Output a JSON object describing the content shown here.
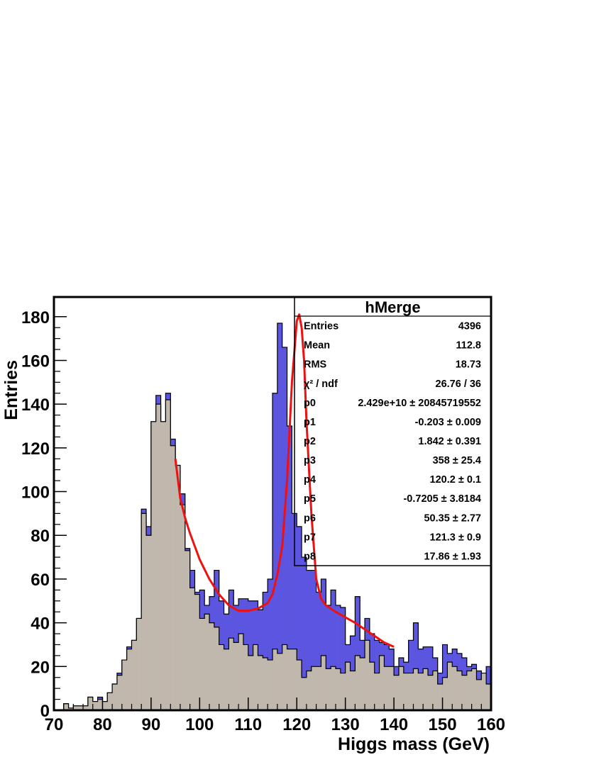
{
  "chart_data": {
    "type": "histogram",
    "xlabel": "Higgs mass (GeV)",
    "ylabel": "Entries",
    "xlim": [
      70,
      160
    ],
    "ylim": [
      0,
      189
    ],
    "x_ticks": [
      70,
      80,
      90,
      100,
      110,
      120,
      130,
      140,
      150,
      160
    ],
    "y_ticks": [
      0,
      20,
      40,
      60,
      80,
      100,
      120,
      140,
      160,
      180
    ],
    "bin_width": 1,
    "bin_start": 70,
    "colors": {
      "signal": "#5b55e0",
      "background": "#c0b7ad",
      "fit": "#ee1111"
    },
    "series": [
      {
        "values": [
          0,
          0,
          3,
          1,
          2,
          2,
          2,
          6,
          4,
          6,
          4,
          8,
          12,
          17,
          23,
          29,
          32,
          42,
          92,
          84,
          132,
          144,
          132,
          145,
          124,
          112,
          99,
          74,
          64,
          54,
          55,
          48,
          52,
          64,
          50,
          44,
          55,
          48,
          51,
          51,
          50,
          50,
          46,
          54,
          60,
          145,
          177,
          166,
          130,
          90,
          84,
          70,
          64,
          64,
          54,
          60,
          48,
          55,
          48,
          47,
          30,
          34,
          52,
          32,
          42,
          35,
          32,
          31,
          30,
          28,
          20,
          24,
          22,
          32,
          40,
          28,
          29,
          29,
          24,
          17,
          30,
          26,
          28,
          26,
          24,
          20,
          21,
          18,
          17,
          20
        ],
        "fill": "#5b55e0"
      },
      {
        "values": [
          0,
          0,
          3,
          1,
          2,
          2,
          2,
          6,
          4,
          5,
          4,
          8,
          12,
          16,
          23,
          28,
          32,
          42,
          90,
          80,
          132,
          140,
          132,
          142,
          121,
          112,
          94,
          73,
          56,
          53,
          42,
          44,
          40,
          38,
          30,
          28,
          33,
          31,
          35,
          30,
          25,
          30,
          25,
          24,
          23,
          28,
          26,
          30,
          28,
          28,
          23,
          15,
          18,
          20,
          20,
          25,
          19,
          20,
          19,
          17,
          22,
          18,
          25,
          24,
          32,
          22,
          17,
          25,
          20,
          20,
          16,
          20,
          17,
          17,
          19,
          17,
          19,
          16,
          18,
          12,
          15,
          22,
          20,
          18,
          16,
          18,
          19,
          14,
          17,
          12
        ],
        "fill": "#c0b7ad"
      }
    ],
    "fit_curve": {
      "color": "#ee1111",
      "x": [
        95,
        96,
        97,
        98,
        99,
        100,
        102,
        104,
        106,
        108,
        110,
        112,
        114,
        115,
        116,
        117,
        118,
        119,
        120,
        120.5,
        121,
        121.5,
        122,
        123,
        124,
        125,
        126,
        128,
        130,
        132,
        134,
        136,
        138,
        140
      ],
      "y": [
        115,
        97,
        88,
        81,
        75,
        69,
        60,
        53,
        48,
        45.5,
        45.5,
        46.5,
        49,
        53,
        62,
        75,
        105,
        150,
        178,
        181,
        175,
        160,
        132,
        90,
        60,
        51,
        48,
        45,
        42.5,
        40,
        37,
        34,
        31,
        29
      ]
    },
    "stats_box": {
      "title": "hMerge",
      "rows": [
        {
          "label": "Entries",
          "value": "4396"
        },
        {
          "label": "Mean",
          "value": "112.8"
        },
        {
          "label": "RMS",
          "value": "18.73"
        },
        {
          "label": "χ² / ndf",
          "value": "26.76 / 36"
        },
        {
          "label": "p0",
          "value": "2.429e+10 ± 20845719552"
        },
        {
          "label": "p1",
          "value": "-0.203 ± 0.009"
        },
        {
          "label": "p2",
          "value": "1.842 ± 0.391"
        },
        {
          "label": "p3",
          "value": "358 ± 25.4"
        },
        {
          "label": "p4",
          "value": "120.2 ± 0.1"
        },
        {
          "label": "p5",
          "value": "-0.7205 ± 3.8184"
        },
        {
          "label": "p6",
          "value": "50.35 ± 2.77"
        },
        {
          "label": "p7",
          "value": "121.3 ± 0.9"
        },
        {
          "label": "p8",
          "value": "17.86 ± 1.93"
        }
      ]
    }
  }
}
